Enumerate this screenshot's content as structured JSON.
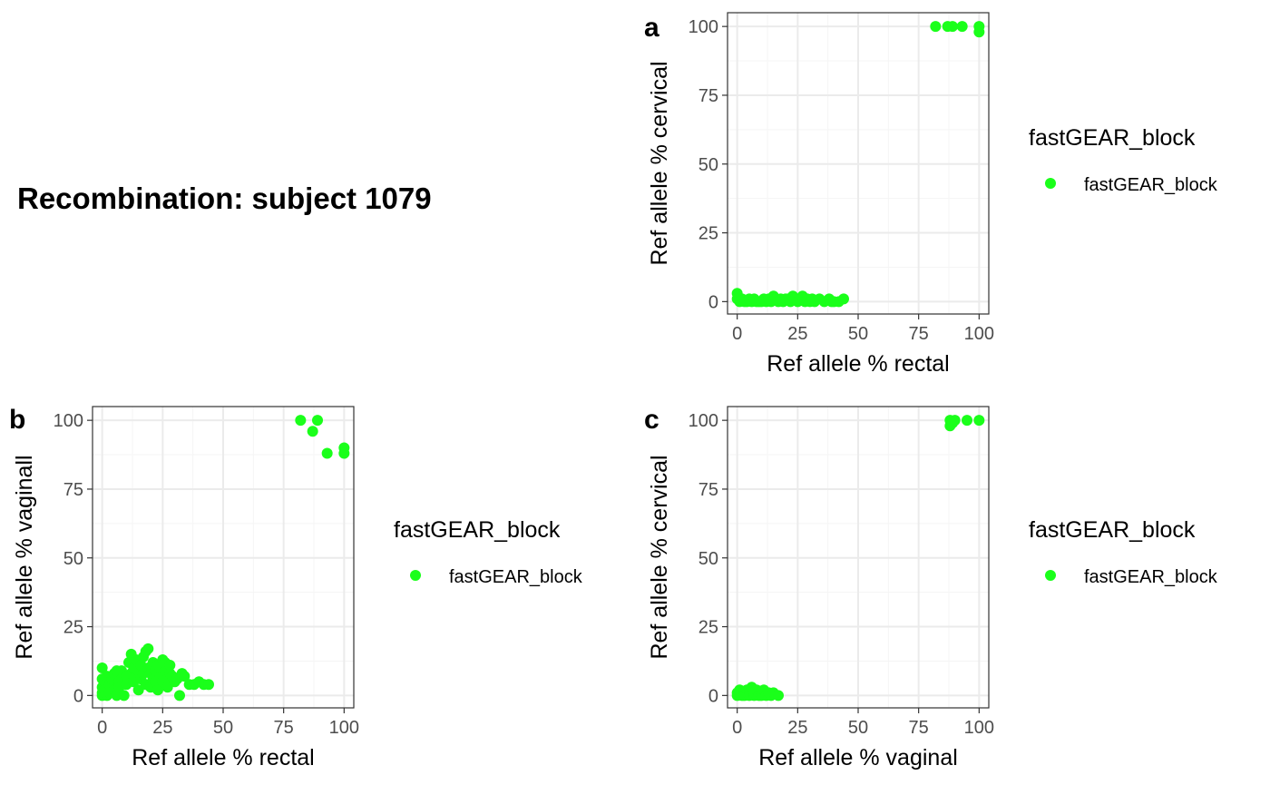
{
  "title": "Recombination: subject 1079",
  "colors": {
    "point": "#1aff1a",
    "grid_major": "#ebebeb",
    "grid_minor": "#f5f5f5",
    "panel_border": "#333333"
  },
  "chart_data": [
    {
      "tag": "a",
      "type": "scatter",
      "xlabel": "Ref allele % rectal",
      "ylabel": "Ref allele % cervical",
      "xlim": [
        -4,
        104
      ],
      "ylim": [
        -4.5,
        105
      ],
      "xticks": [
        0,
        25,
        50,
        75,
        100
      ],
      "yticks": [
        0,
        25,
        50,
        75,
        100
      ],
      "grid": true,
      "legend_position": "right",
      "legend_title": "fastGEAR_block",
      "series": [
        {
          "name": "fastGEAR_block",
          "x": [
            0,
            0,
            1,
            2,
            3,
            4,
            5,
            6,
            7,
            8,
            9,
            10,
            11,
            12,
            13,
            14,
            15,
            16,
            17,
            18,
            19,
            20,
            21,
            22,
            23,
            24,
            25,
            26,
            27,
            28,
            29,
            30,
            31,
            32,
            34,
            36,
            38,
            39,
            40,
            42,
            44,
            82,
            87,
            89,
            93,
            100,
            100
          ],
          "y": [
            3,
            1,
            0,
            1,
            0,
            0,
            1,
            0,
            1,
            0,
            0,
            0,
            1,
            0,
            1,
            0,
            2,
            1,
            0,
            1,
            0,
            1,
            1,
            0,
            2,
            1,
            0,
            1,
            2,
            0,
            1,
            0,
            1,
            0,
            1,
            0,
            1,
            0,
            0,
            0,
            1,
            100,
            100,
            100,
            100,
            100,
            98
          ]
        }
      ]
    },
    {
      "tag": "b",
      "type": "scatter",
      "xlabel": "Ref allele % rectal",
      "ylabel": "Ref allele % vaginall",
      "xlim": [
        -4,
        104
      ],
      "ylim": [
        -4.5,
        105
      ],
      "xticks": [
        0,
        25,
        50,
        75,
        100
      ],
      "yticks": [
        0,
        25,
        50,
        75,
        100
      ],
      "grid": true,
      "legend_position": "right",
      "legend_title": "fastGEAR_block",
      "series": [
        {
          "name": "fastGEAR_block",
          "x": [
            0,
            0,
            0,
            0,
            0,
            1,
            1,
            2,
            2,
            3,
            3,
            4,
            5,
            5,
            6,
            6,
            7,
            7,
            8,
            8,
            9,
            10,
            10,
            11,
            12,
            12,
            13,
            13,
            14,
            14,
            15,
            15,
            16,
            16,
            17,
            17,
            18,
            18,
            19,
            19,
            20,
            20,
            21,
            21,
            22,
            22,
            23,
            23,
            24,
            24,
            25,
            25,
            26,
            26,
            27,
            27,
            28,
            28,
            29,
            30,
            31,
            32,
            33,
            34,
            36,
            38,
            40,
            42,
            44,
            82,
            87,
            89,
            93,
            100,
            100
          ],
          "y": [
            10,
            6,
            3,
            1,
            0,
            5,
            2,
            7,
            0,
            4,
            1,
            6,
            8,
            2,
            9,
            0,
            5,
            3,
            9,
            6,
            0,
            7,
            4,
            12,
            8,
            15,
            10,
            5,
            13,
            7,
            9,
            2,
            11,
            6,
            14,
            8,
            16,
            4,
            17,
            10,
            8,
            3,
            12,
            6,
            9,
            5,
            11,
            2,
            7,
            10,
            13,
            5,
            9,
            12,
            6,
            3,
            8,
            11,
            7,
            5,
            6,
            0,
            8,
            7,
            4,
            4,
            5,
            4,
            4,
            100,
            96,
            100,
            88,
            90,
            88
          ]
        }
      ]
    },
    {
      "tag": "c",
      "type": "scatter",
      "xlabel": "Ref allele % vaginal",
      "ylabel": "Ref allele % cervical",
      "xlim": [
        -4,
        104
      ],
      "ylim": [
        -4.5,
        105
      ],
      "xticks": [
        0,
        25,
        50,
        75,
        100
      ],
      "yticks": [
        0,
        25,
        50,
        75,
        100
      ],
      "grid": true,
      "legend_position": "right",
      "legend_title": "fastGEAR_block",
      "series": [
        {
          "name": "fastGEAR_block",
          "x": [
            0,
            0,
            1,
            2,
            3,
            3,
            4,
            5,
            5,
            6,
            7,
            7,
            8,
            9,
            10,
            10,
            11,
            12,
            13,
            14,
            15,
            17,
            88,
            88,
            89,
            90,
            95,
            100
          ],
          "y": [
            1,
            0,
            2,
            0,
            1,
            0,
            2,
            1,
            0,
            3,
            0,
            1,
            2,
            0,
            1,
            0,
            2,
            0,
            1,
            0,
            1,
            0,
            100,
            98,
            99,
            100,
            100,
            100
          ]
        }
      ]
    }
  ]
}
